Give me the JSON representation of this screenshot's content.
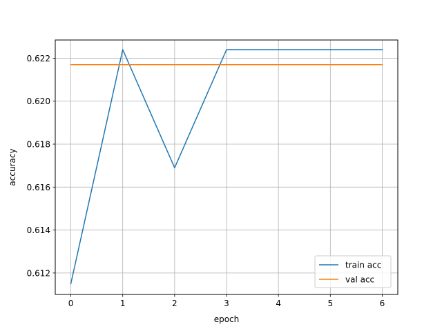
{
  "chart_data": {
    "type": "line",
    "title": "",
    "xlabel": "epoch",
    "ylabel": "accuracy",
    "x": [
      0,
      1,
      2,
      3,
      4,
      5,
      6
    ],
    "xlim": [
      -0.3,
      6.3
    ],
    "ylim": [
      0.611,
      0.62285
    ],
    "xticks": [
      0,
      1,
      2,
      3,
      4,
      5,
      6
    ],
    "yticks": [
      0.612,
      0.614,
      0.616,
      0.618,
      0.62,
      0.622
    ],
    "ytick_labels": [
      "0.612",
      "0.614",
      "0.616",
      "0.618",
      "0.620",
      "0.622"
    ],
    "grid": true,
    "legend_position": "lower-right",
    "series": [
      {
        "name": "train acc",
        "color": "#1f77b4",
        "values": [
          0.6115,
          0.6224,
          0.6169,
          0.6224,
          0.6224,
          0.6224,
          0.6224
        ]
      },
      {
        "name": "val acc",
        "color": "#ff7f0e",
        "values": [
          0.6217,
          0.6217,
          0.6217,
          0.6217,
          0.6217,
          0.6217,
          0.6217
        ]
      }
    ]
  }
}
